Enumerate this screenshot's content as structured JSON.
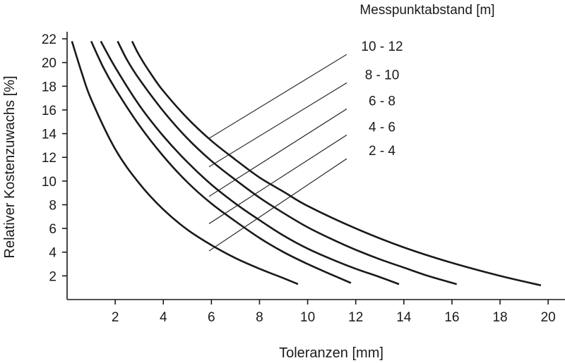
{
  "chart_data": {
    "type": "line",
    "xlabel": "Toleranzen [mm]",
    "ylabel": "Relativer Kostenzuwachs [%]",
    "legend_title": "Messpunktabstand [m]",
    "legend_placement": "top-right",
    "grid": false,
    "xlim": [
      0.0,
      20.7
    ],
    "ylim": [
      0.0,
      22.6
    ],
    "x_ticks": [
      2,
      4,
      6,
      8,
      10,
      12,
      14,
      16,
      18,
      20
    ],
    "y_ticks": [
      2,
      4,
      6,
      8,
      10,
      12,
      14,
      16,
      18,
      20,
      22
    ],
    "series": [
      {
        "name": "2 - 4",
        "label_y": 12.6,
        "label_anchor": {
          "x": 5.9,
          "y": 4.1
        },
        "points": [
          [
            0.2,
            21.8
          ],
          [
            0.6,
            19.2
          ],
          [
            1.0,
            16.9
          ],
          [
            2.0,
            12.7
          ],
          [
            3.0,
            9.8
          ],
          [
            4.0,
            7.6
          ],
          [
            5.0,
            5.9
          ],
          [
            6.0,
            4.6
          ],
          [
            7.0,
            3.5
          ],
          [
            8.0,
            2.6
          ],
          [
            9.0,
            1.8
          ],
          [
            9.6,
            1.3
          ]
        ]
      },
      {
        "name": "4 - 6",
        "label_y": 14.6,
        "label_anchor": {
          "x": 5.9,
          "y": 6.4
        },
        "points": [
          [
            1.0,
            21.8
          ],
          [
            1.5,
            19.6
          ],
          [
            2.0,
            17.8
          ],
          [
            3.0,
            14.7
          ],
          [
            4.0,
            12.1
          ],
          [
            5.0,
            9.9
          ],
          [
            6.0,
            8.1
          ],
          [
            7.0,
            6.6
          ],
          [
            8.0,
            5.2
          ],
          [
            9.0,
            4.0
          ],
          [
            10.0,
            3.0
          ],
          [
            11.0,
            2.1
          ],
          [
            11.8,
            1.4
          ]
        ]
      },
      {
        "name": "6 - 8",
        "label_y": 16.8,
        "label_anchor": {
          "x": 5.9,
          "y": 8.7
        },
        "points": [
          [
            1.4,
            21.8
          ],
          [
            2.0,
            19.6
          ],
          [
            3.0,
            16.4
          ],
          [
            4.0,
            13.8
          ],
          [
            5.0,
            11.6
          ],
          [
            6.0,
            9.7
          ],
          [
            7.0,
            8.1
          ],
          [
            8.0,
            6.7
          ],
          [
            9.0,
            5.4
          ],
          [
            10.0,
            4.3
          ],
          [
            11.0,
            3.4
          ],
          [
            12.0,
            2.6
          ],
          [
            13.0,
            1.9
          ],
          [
            13.8,
            1.3
          ]
        ]
      },
      {
        "name": "8 - 10",
        "label_y": 19.0,
        "label_anchor": {
          "x": 5.9,
          "y": 11.2
        },
        "points": [
          [
            2.1,
            21.8
          ],
          [
            2.5,
            20.2
          ],
          [
            3.0,
            18.6
          ],
          [
            4.0,
            15.9
          ],
          [
            5.0,
            13.6
          ],
          [
            6.0,
            11.7
          ],
          [
            7.0,
            10.1
          ],
          [
            8.0,
            8.6
          ],
          [
            9.0,
            7.3
          ],
          [
            10.0,
            6.1
          ],
          [
            11.0,
            5.1
          ],
          [
            12.0,
            4.2
          ],
          [
            13.0,
            3.4
          ],
          [
            14.0,
            2.7
          ],
          [
            15.0,
            2.0
          ],
          [
            16.2,
            1.3
          ]
        ]
      },
      {
        "name": "10 - 12",
        "label_y": 21.4,
        "label_anchor": {
          "x": 5.9,
          "y": 13.6
        },
        "points": [
          [
            2.7,
            21.8
          ],
          [
            3.0,
            20.6
          ],
          [
            3.5,
            19.0
          ],
          [
            4.0,
            17.6
          ],
          [
            5.0,
            15.3
          ],
          [
            6.0,
            13.4
          ],
          [
            7.0,
            11.8
          ],
          [
            8.0,
            10.3
          ],
          [
            9.0,
            9.1
          ],
          [
            10.0,
            7.9
          ],
          [
            12.0,
            6.0
          ],
          [
            14.0,
            4.4
          ],
          [
            16.0,
            3.1
          ],
          [
            18.0,
            2.0
          ],
          [
            19.7,
            1.2
          ]
        ]
      }
    ]
  }
}
